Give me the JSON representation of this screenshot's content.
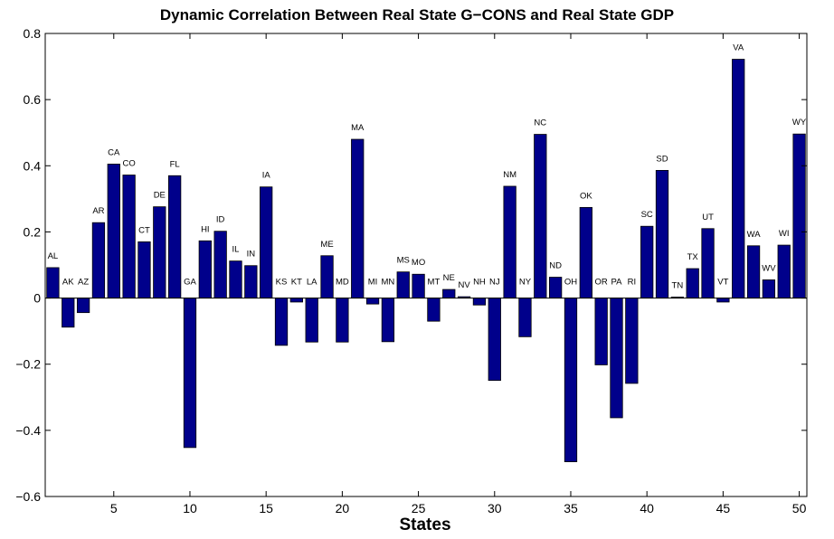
{
  "chart_data": {
    "type": "bar",
    "title": "Dynamic Correlation Between  Real State G−CONS and  Real State GDP",
    "xlabel": "States",
    "ylabel": "",
    "xlim": [
      0.5,
      50.5
    ],
    "ylim": [
      -0.6,
      0.8
    ],
    "xticks": [
      5,
      10,
      15,
      20,
      25,
      30,
      35,
      40,
      45,
      50
    ],
    "xtick_labels": [
      "5",
      "10",
      "15",
      "20",
      "25",
      "30",
      "35",
      "40",
      "45",
      "50"
    ],
    "yticks": [
      -0.6,
      -0.4,
      -0.2,
      0,
      0.2,
      0.4,
      0.6,
      0.8
    ],
    "ytick_labels": [
      "−0.6",
      "−0.4",
      "−0.2",
      "0",
      "0.2",
      "0.4",
      "0.6",
      "0.8"
    ],
    "bar_color": "#00008B",
    "grid": false,
    "legend": "none",
    "x": [
      1,
      2,
      3,
      4,
      5,
      6,
      7,
      8,
      9,
      10,
      11,
      12,
      13,
      14,
      15,
      16,
      17,
      18,
      19,
      20,
      21,
      22,
      23,
      24,
      25,
      26,
      27,
      28,
      29,
      30,
      31,
      32,
      33,
      34,
      35,
      36,
      37,
      38,
      39,
      40,
      41,
      42,
      43,
      44,
      45,
      46,
      47,
      48,
      49,
      50
    ],
    "categories": [
      "AL",
      "AK",
      "AZ",
      "AR",
      "CA",
      "CO",
      "CT",
      "DE",
      "FL",
      "GA",
      "HI",
      "ID",
      "IL",
      "IN",
      "IA",
      "KS",
      "KT",
      "LA",
      "ME",
      "MD",
      "MA",
      "MI",
      "MN",
      "MS",
      "MO",
      "MT",
      "NE",
      "NV",
      "NH",
      "NJ",
      "NM",
      "NY",
      "NC",
      "ND",
      "OH",
      "OK",
      "OR",
      "PA",
      "RI",
      "SC",
      "SD",
      "TN",
      "TX",
      "UT",
      "VT",
      "VA",
      "WA",
      "WV",
      "WI",
      "WY"
    ],
    "values": [
      0.092,
      -0.088,
      -0.044,
      0.228,
      0.405,
      0.372,
      0.17,
      0.276,
      0.37,
      -0.452,
      0.173,
      0.202,
      0.112,
      0.098,
      0.336,
      -0.143,
      -0.012,
      -0.133,
      0.128,
      -0.133,
      0.48,
      -0.018,
      -0.132,
      0.079,
      0.072,
      -0.07,
      0.026,
      0.004,
      -0.021,
      -0.249,
      0.338,
      -0.117,
      0.495,
      0.063,
      -0.495,
      0.274,
      -0.202,
      -0.362,
      -0.258,
      0.217,
      0.386,
      0.003,
      0.089,
      0.21,
      -0.012,
      0.722,
      0.158,
      0.055,
      0.16,
      0.496
    ]
  }
}
